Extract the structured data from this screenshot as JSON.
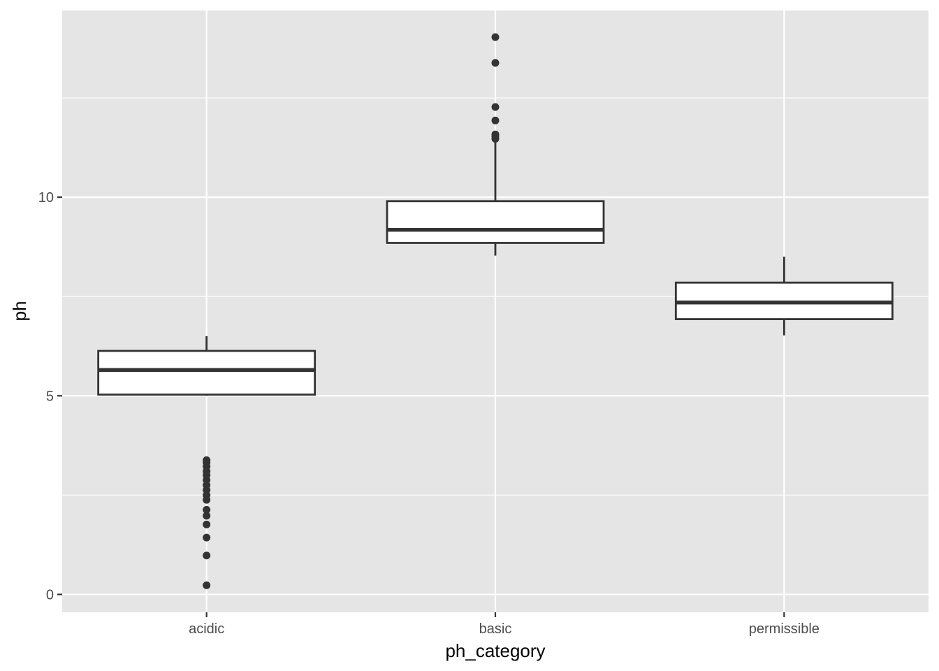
{
  "chart_data": {
    "type": "boxplot",
    "title": "",
    "xlabel": "ph_category",
    "ylabel": "ph",
    "ylim": [
      -0.45,
      14.7
    ],
    "yticks": [
      0,
      5,
      10
    ],
    "ytick_labels": [
      "0",
      "5",
      "10"
    ],
    "y_minor_ticks": [
      2.5,
      7.5,
      12.5
    ],
    "grid": true,
    "categories": [
      "acidic",
      "basic",
      "permissible"
    ],
    "boxes": [
      {
        "category": "acidic",
        "lower_whisker": 5.0,
        "q1": 5.03,
        "median": 5.65,
        "q3": 6.13,
        "upper_whisker": 6.5,
        "outliers": [
          0.23,
          0.98,
          1.43,
          1.76,
          1.98,
          2.13,
          2.38,
          2.5,
          2.63,
          2.75,
          2.88,
          3.0,
          3.1,
          3.22,
          3.32,
          3.38
        ]
      },
      {
        "category": "basic",
        "lower_whisker": 8.53,
        "q1": 8.85,
        "median": 9.18,
        "q3": 9.9,
        "upper_whisker": 11.4,
        "outliers": [
          11.47,
          11.53,
          11.58,
          11.93,
          12.27,
          13.38,
          14.03
        ]
      },
      {
        "category": "permissible",
        "lower_whisker": 6.52,
        "q1": 6.93,
        "median": 7.35,
        "q3": 7.85,
        "upper_whisker": 8.5,
        "outliers": []
      }
    ],
    "colors": {
      "panel": "#e5e5e5",
      "grid": "#ffffff",
      "box_fill": "#ffffff",
      "box_line": "#333333",
      "point": "#333333",
      "tick_text": "#4d4d4d",
      "axis_title": "#000000"
    }
  }
}
